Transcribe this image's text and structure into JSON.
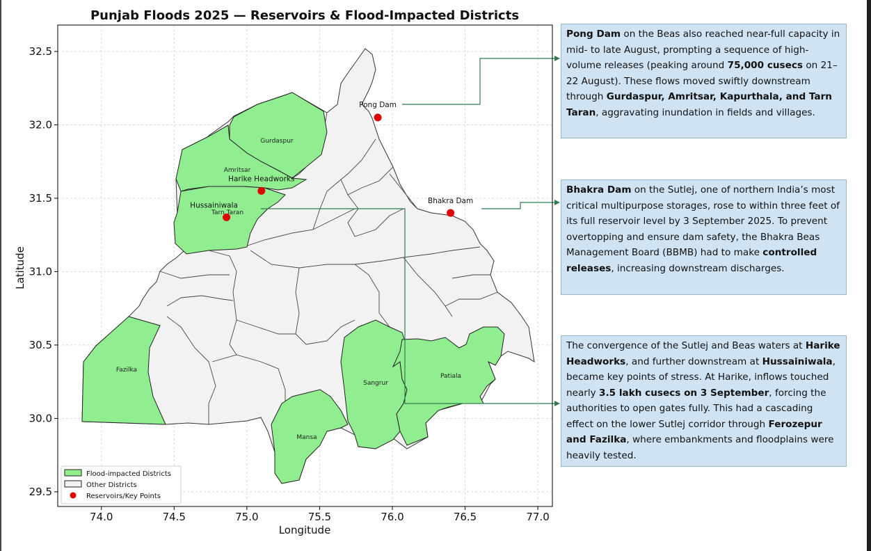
{
  "title": "Punjab Floods 2025 — Reservoirs & Flood-Impacted Districts",
  "axes": {
    "xlabel": "Longitude",
    "ylabel": "Latitude",
    "xlim": [
      73.7,
      77.1
    ],
    "ylim": [
      29.4,
      32.68
    ],
    "xticks": [
      "74.0",
      "74.5",
      "75.0",
      "75.5",
      "76.0",
      "76.5",
      "77.0"
    ],
    "yticks": [
      "29.5",
      "30.0",
      "30.5",
      "31.0",
      "31.5",
      "32.0",
      "32.5"
    ],
    "grid": true
  },
  "colors": {
    "flood": "#90ee90",
    "other": "#f2f2f2",
    "point": "#e00000",
    "connector": "#2e7d4f",
    "box": "#cfe3f3"
  },
  "districts": {
    "gurdaspur": "Gurdaspur",
    "amritsar": "Amritsar",
    "tarn_taran": "Tarn Taran",
    "fazilka": "Fazilka",
    "sangrur": "Sangrur",
    "patiala": "Patiala",
    "mansa": "Mansa"
  },
  "points": [
    {
      "name": "Pong Dam",
      "lon": 75.9,
      "lat": 32.05
    },
    {
      "name": "Harike Headworks",
      "lon": 75.1,
      "lat": 31.55
    },
    {
      "name": "Hussainiwala",
      "lon": 74.86,
      "lat": 31.37
    },
    {
      "name": "Bhakra Dam",
      "lon": 76.4,
      "lat": 31.4
    }
  ],
  "legend": {
    "flood": "Flood-impacted Districts",
    "other": "Other Districts",
    "points": "Reservoirs/Key Points"
  },
  "annotations": {
    "pong": {
      "b1": "Pong Dam",
      "t1": " on the Beas also reached near-full capacity in mid- to late August, prompting a sequence of high-volume releases (peaking around ",
      "b2": "75,000 cusecs",
      "t2": " on 21–22 August). These flows moved swiftly downstream through ",
      "b3": "Gurdaspur, Amritsar, Kapurthala, and Tarn Taran",
      "t3": ", aggravating inundation in fields and villages."
    },
    "bhakra": {
      "b1": "Bhakra Dam",
      "t1": " on the Sutlej, one of northern India’s most critical multipurpose storages, rose to within three feet of its full reservoir level by 3 September 2025. To prevent overtopping and ensure dam safety, the Bhakra Beas Management Board (BBMB) had to make ",
      "b2": "controlled releases",
      "t2": ", increasing downstream discharges."
    },
    "harike": {
      "t1": "The convergence of the Sutlej and Beas waters at ",
      "b1": "Harike Headworks",
      "t2": ", and further downstream at ",
      "b2": "Hussainiwala",
      "t3": ", became key points of stress. At Harike, inflows touched nearly ",
      "b3": "3.5 lakh cusecs on 3 September",
      "t4": ", forcing the authorities to open gates fully. This had a cascading effect on the lower Sutlej corridor through ",
      "b4": "Ferozepur and Fazilka",
      "t5": ", where embankments and floodplains were heavily tested."
    }
  }
}
